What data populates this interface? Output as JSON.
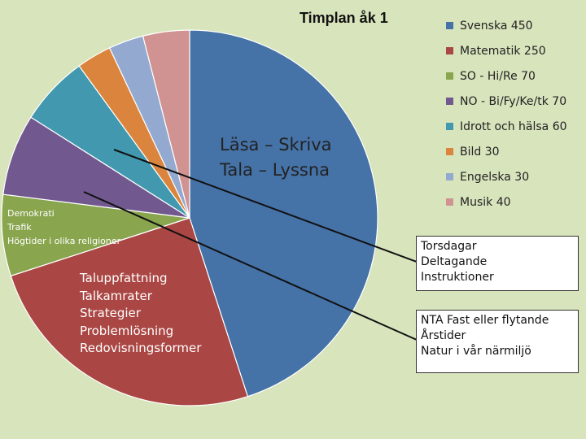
{
  "chart_data": {
    "type": "pie",
    "title": "Timplan åk 1",
    "start_angle_deg": 0,
    "direction": "clockwise",
    "slices": [
      {
        "label": "Svenska 450",
        "value": 450,
        "color": "#4572a7"
      },
      {
        "label": "Matematik 250",
        "value": 250,
        "color": "#aa4643"
      },
      {
        "label": "SO - Hi/Re 70",
        "value": 70,
        "color": "#89a54e"
      },
      {
        "label": "NO - Bi/Fy/Ke/tk 70",
        "value": 70,
        "color": "#71588f"
      },
      {
        "label": "Idrott och hälsa 60",
        "value": 60,
        "color": "#4198af"
      },
      {
        "label": "Bild 30",
        "value": 30,
        "color": "#db843d"
      },
      {
        "label": "Engelska 30",
        "value": 30,
        "color": "#93a9cf"
      },
      {
        "label": "Musik 40",
        "value": 40,
        "color": "#d19392"
      }
    ],
    "legend_position": "right"
  },
  "annotations": {
    "svenska_text": [
      "Läsa – Skriva",
      "Tala – Lyssna"
    ],
    "so_text": [
      "Demokrati",
      "Trafik",
      "Högtider i olika religioner"
    ],
    "matematik_text": [
      "Taluppfattning",
      "Talkamrater",
      "Strategier",
      "Problemlösning",
      "Redovisningsformer"
    ],
    "box_no": [
      "Torsdagar",
      "Deltagande",
      "Instruktioner"
    ],
    "box_nta": [
      "NTA Fast eller flytande",
      "Årstider",
      "Natur i vår närmiljö"
    ]
  }
}
